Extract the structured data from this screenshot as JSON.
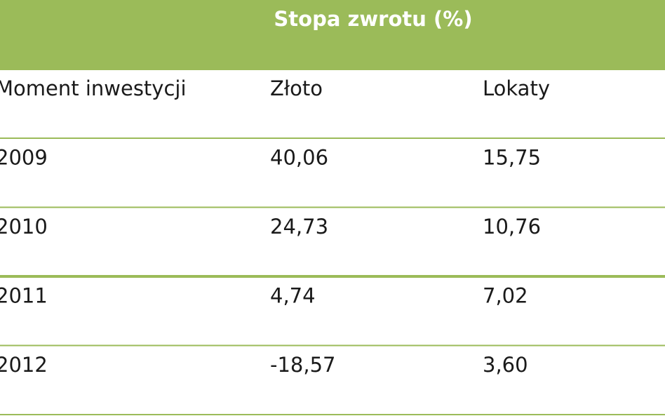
{
  "header": {
    "title": "Stopa zwrotu (%)"
  },
  "table": {
    "columns": [
      "Moment inwestycji",
      "Złoto",
      "Lokaty"
    ],
    "rows": [
      [
        "2009",
        "40,06",
        "15,75"
      ],
      [
        "2010",
        "24,73",
        "10,76"
      ],
      [
        "2011",
        "4,74",
        "7,02"
      ],
      [
        "2012",
        "-18,57",
        "3,60"
      ]
    ]
  }
}
